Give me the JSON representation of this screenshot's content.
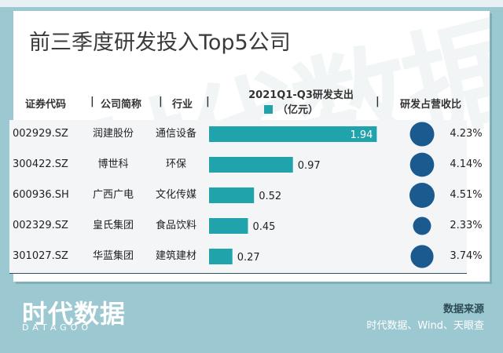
{
  "title": "前三季度研发投入Top5公司",
  "columns": {
    "code": "证券代码",
    "name": "公司简称",
    "industry": "行业",
    "ratio": "研发占营收比",
    "separator": "|"
  },
  "chart_data": {
    "type": "bar",
    "legend_line1": "2021Q1-Q3研发支出",
    "legend_line2": "（亿元）",
    "bar_color": "#20a3ab",
    "circle_color": "#1a5a8e",
    "categories": [
      "润建股份",
      "博世科",
      "广西广电",
      "皇氏集团",
      "华蓝集团"
    ],
    "values": [
      1.94,
      0.97,
      0.52,
      0.45,
      0.27
    ],
    "value_labels": [
      "1.94",
      "0.97",
      "0.52",
      "0.45",
      "0.27"
    ],
    "ratios": [
      4.23,
      4.14,
      4.51,
      2.33,
      3.74
    ],
    "ratio_labels": [
      "4.23%",
      "4.14%",
      "4.51%",
      "2.33%",
      "3.74%"
    ],
    "xlim": [
      0,
      2.0
    ]
  },
  "rows": [
    {
      "code": "002929.SZ",
      "name": "润建股份",
      "industry": "通信设备"
    },
    {
      "code": "300422.SZ",
      "name": "博世科",
      "industry": "环保"
    },
    {
      "code": "600936.SH",
      "name": "广西广电",
      "industry": "文化传媒"
    },
    {
      "code": "002329.SZ",
      "name": "皇氏集团",
      "industry": "食品饮料"
    },
    {
      "code": "301027.SZ",
      "name": "华蓝集团",
      "industry": "建筑建材"
    }
  ],
  "footer": {
    "logo": "时代数据",
    "logo_sub": "DATAGOO",
    "source_label": "数据来源",
    "source_text": "时代数据、Wind、天眼查"
  }
}
